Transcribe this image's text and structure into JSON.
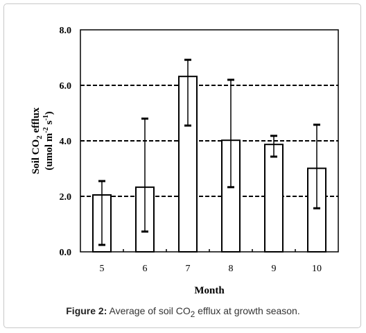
{
  "chart_data": {
    "type": "bar",
    "categories": [
      "5",
      "6",
      "7",
      "8",
      "9",
      "10"
    ],
    "values": [
      2.05,
      2.33,
      6.32,
      4.02,
      3.87,
      3.01
    ],
    "error_upper": [
      2.55,
      4.8,
      6.92,
      6.2,
      4.18,
      4.58
    ],
    "error_lower": [
      0.25,
      0.73,
      4.55,
      2.33,
      3.43,
      1.57
    ],
    "ylim": [
      0,
      8
    ],
    "yticks": [
      "0.0",
      "2.0",
      "4.0",
      "6.0",
      "8.0"
    ],
    "xlabel": "Month",
    "ylabel_line1": "Soil CO",
    "ylabel_sub1": "2",
    "ylabel_line1_end": " efflux",
    "ylabel_line2": "(umol m",
    "ylabel_sup_a": "-2",
    "ylabel_mid": " s",
    "ylabel_sup_b": "-1",
    "ylabel_end": ")",
    "grid": "dashed-horizontal",
    "bar_fill": "#ffffff",
    "bar_stroke": "#000000"
  },
  "caption": {
    "label": "Figure 2:",
    "text_before": " Average of soil CO",
    "subscript": "2",
    "text_after": " efflux at growth season."
  }
}
